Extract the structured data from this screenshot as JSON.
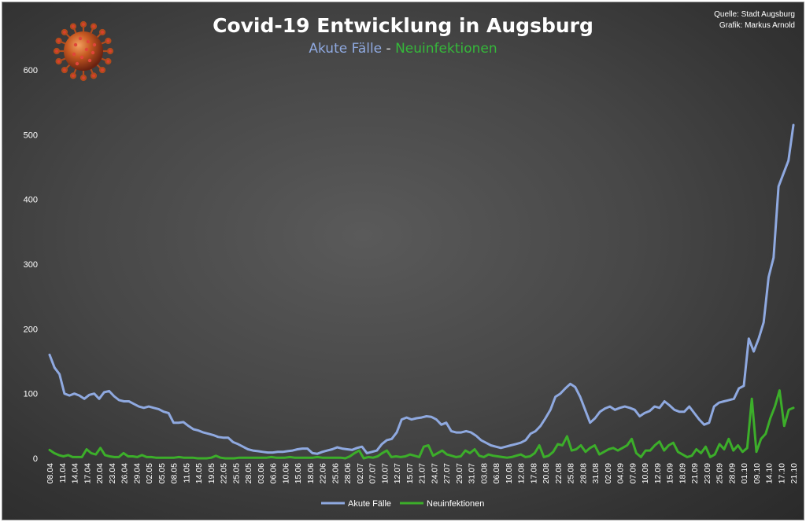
{
  "title": "Covid-19 Entwicklung in Augsburg",
  "subtitle": {
    "acute": "Akute Fälle",
    "separator": " - ",
    "new": "Neuinfektionen"
  },
  "source": "Quelle: Stadt Augsburg",
  "author": "Grafik: Markus Arnold",
  "logo_icon": "coronavirus-icon",
  "colors": {
    "acute": "#8fa9e0",
    "new": "#3cae2a",
    "background": "#454545"
  },
  "chart_data": {
    "type": "line",
    "title": "Covid-19 Entwicklung in Augsburg",
    "ylim": [
      0,
      600
    ],
    "yticks": [
      0,
      100,
      200,
      300,
      400,
      500,
      600
    ],
    "grid": false,
    "legend_position": "bottom",
    "x_tick_labels": [
      "08.04",
      "11.04",
      "14.04",
      "17.04",
      "20.04",
      "23.04",
      "26.04",
      "29.04",
      "02.05",
      "05.05",
      "08.05",
      "11.05",
      "14.05",
      "19.05",
      "22.05",
      "25.05",
      "28.05",
      "03.06",
      "06.06",
      "10.06",
      "15.06",
      "18.06",
      "22.06",
      "25.06",
      "28.06",
      "02.07",
      "07.07",
      "10.07",
      "12.07",
      "15.07",
      "21.07",
      "24.07",
      "27.07",
      "29.07",
      "31.07",
      "03.08",
      "06.08",
      "10.08",
      "12.08",
      "17.08",
      "20.08",
      "22.08",
      "25.08",
      "28.08",
      "31.08",
      "02.09",
      "04.09",
      "07.09",
      "10.09",
      "12.09",
      "15.09",
      "18.09",
      "21.09",
      "23.09",
      "25.09",
      "28.09",
      "01.10",
      "09.10",
      "14.10",
      "17.10",
      "21.10"
    ],
    "x_tick_labels_shown": [
      "08.04",
      "11.04",
      "14.04",
      "17.04",
      "20.04",
      "23.04",
      "26.04",
      "29.04",
      "02.05",
      "05.05",
      "08.05",
      "11.05",
      "14.05",
      "19.05",
      "22.05",
      "25.05",
      "28.05",
      "03.06",
      "06.06",
      "10.06",
      "15.06",
      "18.06",
      "22.06",
      "25.06",
      "28.06",
      "02.07",
      "07.07",
      "10.07",
      "12.07",
      "15.07",
      "21.07",
      "24.07",
      "27.07",
      "29.07",
      "31.07",
      "03.08",
      "06.08",
      "10.08",
      "12.08",
      "17.08",
      "20.08",
      "22.08",
      "25.08",
      "28.08",
      "31.08",
      "02.09",
      "04.09",
      "07.09",
      "10.09",
      "12.09",
      "15.09",
      "18.09",
      "21.09",
      "23.09",
      "25.09",
      "28.09",
      "01.10",
      "09.10",
      "14.10",
      "17.10",
      "21.10"
    ],
    "series": [
      {
        "name": "Akute Fälle",
        "values": [
          160,
          140,
          130,
          100,
          97,
          100,
          97,
          92,
          98,
          100,
          92,
          102,
          104,
          96,
          90,
          88,
          88,
          84,
          80,
          78,
          80,
          78,
          76,
          72,
          70,
          55,
          55,
          56,
          50,
          45,
          43,
          40,
          38,
          36,
          33,
          32,
          32,
          25,
          22,
          18,
          14,
          12,
          11,
          10,
          9,
          9,
          10,
          10,
          11,
          12,
          14,
          15,
          15,
          8,
          7,
          10,
          12,
          14,
          17,
          15,
          14,
          13,
          16,
          18,
          8,
          10,
          12,
          22,
          28,
          30,
          40,
          60,
          63,
          60,
          62,
          63,
          65,
          64,
          60,
          52,
          55,
          42,
          40,
          40,
          42,
          40,
          35,
          28,
          24,
          20,
          18,
          16,
          18,
          20,
          22,
          24,
          28,
          38,
          42,
          50,
          62,
          75,
          95,
          100,
          108,
          115,
          110,
          95,
          75,
          55,
          62,
          72,
          77,
          80,
          75,
          78,
          80,
          78,
          75,
          65,
          70,
          73,
          80,
          78,
          88,
          82,
          75,
          72,
          72,
          80,
          70,
          60,
          52,
          55,
          80,
          86,
          88,
          90,
          92,
          108,
          112,
          185,
          165,
          185,
          210,
          280,
          310,
          420,
          440,
          460,
          515
        ],
        "values_note": "chronological daily samples, estimated from gridlines"
      },
      {
        "name": "Neuinfektionen",
        "values": [
          13,
          8,
          5,
          3,
          5,
          2,
          2,
          2,
          14,
          8,
          6,
          16,
          5,
          3,
          2,
          2,
          8,
          3,
          3,
          2,
          5,
          2,
          2,
          1,
          1,
          1,
          1,
          1,
          2,
          1,
          1,
          1,
          0,
          0,
          0,
          1,
          4,
          1,
          0,
          0,
          0,
          1,
          1,
          1,
          1,
          1,
          1,
          1,
          2,
          1,
          1,
          1,
          2,
          1,
          1,
          1,
          1,
          1,
          2,
          1,
          1,
          1,
          1,
          1,
          0,
          3,
          8,
          12,
          0,
          2,
          1,
          3,
          8,
          12,
          2,
          3,
          2,
          3,
          6,
          4,
          2,
          18,
          20,
          4,
          8,
          12,
          6,
          4,
          2,
          3,
          12,
          8,
          14,
          4,
          2,
          6,
          4,
          3,
          2,
          1,
          2,
          4,
          6,
          2,
          3,
          8,
          20,
          2,
          4,
          10,
          22,
          20,
          34,
          12,
          14,
          20,
          10,
          16,
          20,
          6,
          10,
          14,
          16,
          12,
          16,
          20,
          30,
          8,
          2,
          12,
          12,
          20,
          26,
          12,
          20,
          24,
          10,
          6,
          2,
          4,
          14,
          8,
          18,
          2,
          6,
          22,
          14,
          30,
          12,
          20,
          10,
          16,
          92,
          10,
          30,
          38,
          62,
          80,
          105,
          50,
          75,
          78
        ],
        "values_note": "chronological daily samples, estimated from gridlines"
      }
    ]
  }
}
